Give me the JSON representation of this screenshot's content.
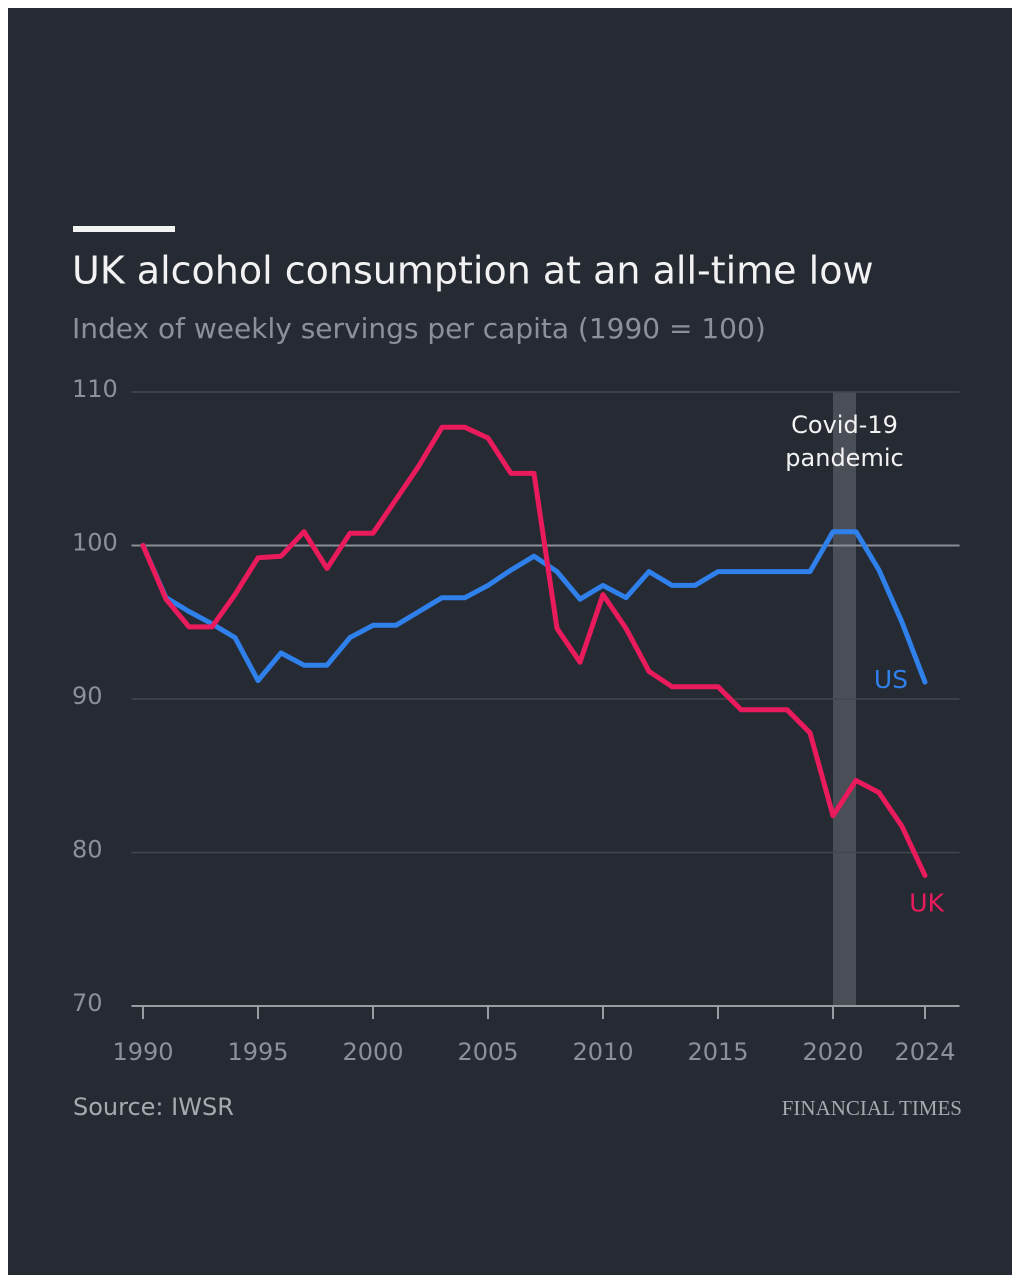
{
  "chart_data": {
    "type": "line",
    "title": "UK alcohol consumption at an all-time low",
    "subtitle": "Index of weekly servings per capita (1990 = 100)",
    "source": "Source: IWSR",
    "publisher": "FINANCIAL TIMES",
    "x": [
      1990,
      1991,
      1992,
      1993,
      1994,
      1995,
      1996,
      1997,
      1998,
      1999,
      2000,
      2001,
      2002,
      2003,
      2004,
      2005,
      2006,
      2007,
      2008,
      2009,
      2010,
      2011,
      2012,
      2013,
      2014,
      2015,
      2016,
      2017,
      2018,
      2019,
      2020,
      2021,
      2022,
      2023,
      2024
    ],
    "series": [
      {
        "name": "US",
        "color": "#2f80ea",
        "values": [
          100,
          96.6,
          95.7,
          94.9,
          94,
          91.2,
          93,
          92.2,
          92.2,
          94,
          94.8,
          94.8,
          95.7,
          96.6,
          96.6,
          97.4,
          98.4,
          99.3,
          98.3,
          96.5,
          97.4,
          96.6,
          98.3,
          97.4,
          97.4,
          98.3,
          98.3,
          98.3,
          98.3,
          98.3,
          100.9,
          100.9,
          98.4,
          95,
          91.1
        ]
      },
      {
        "name": "UK",
        "color": "#ea1b5c",
        "values": [
          100,
          96.5,
          94.7,
          94.7,
          96.8,
          99.2,
          99.3,
          100.9,
          98.5,
          100.8,
          100.8,
          103,
          105.2,
          107.7,
          107.7,
          107,
          104.7,
          104.7,
          94.6,
          92.4,
          96.8,
          94.6,
          91.8,
          90.8,
          90.8,
          90.8,
          89.3,
          89.3,
          89.3,
          87.8,
          82.4,
          84.7,
          83.9,
          81.7,
          78.5
        ]
      }
    ],
    "xlim": [
      1989.5,
      2025.5
    ],
    "xticks": [
      1990,
      1995,
      2000,
      2005,
      2010,
      2015,
      2020,
      2024
    ],
    "ylim": [
      70,
      110
    ],
    "yticks": [
      70,
      80,
      90,
      100,
      110
    ],
    "grid": true,
    "reference_y": 100,
    "annotation": {
      "lines": [
        "Covid-19",
        "pandemic"
      ],
      "x_range": [
        2020,
        2021
      ]
    }
  }
}
